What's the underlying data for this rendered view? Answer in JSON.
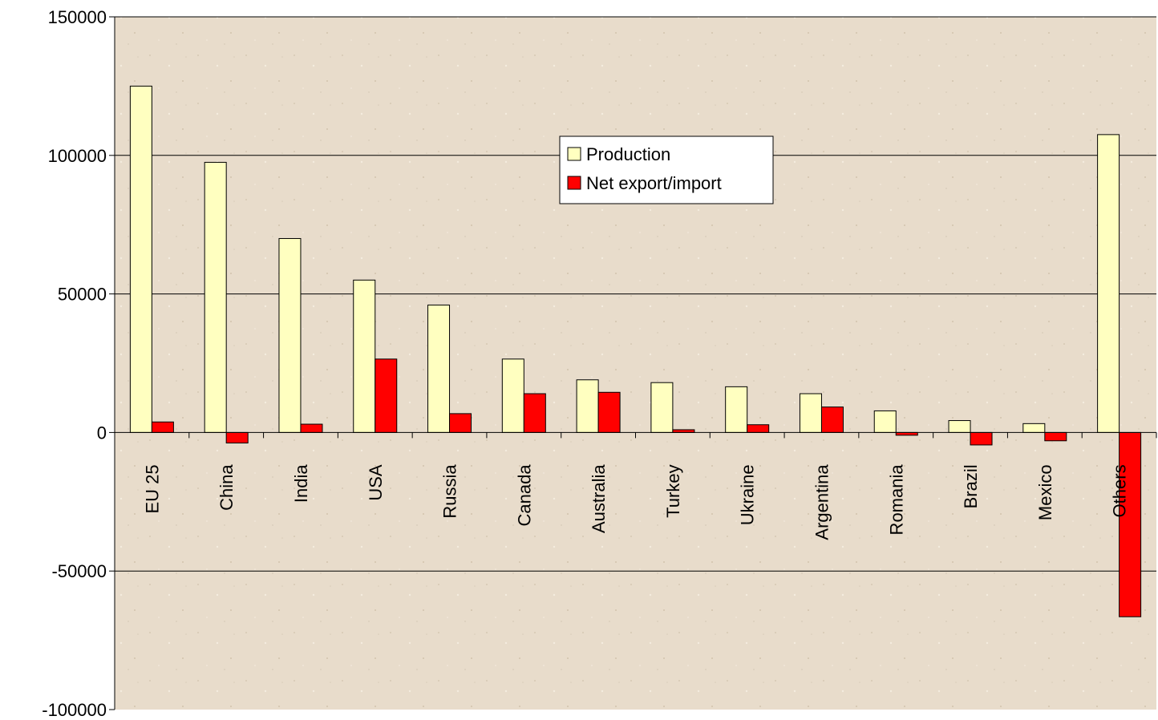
{
  "chart_data": {
    "type": "bar",
    "title": "",
    "xlabel": "",
    "ylabel": "",
    "ylim": [
      -100000,
      150000
    ],
    "yticks": [
      150000,
      100000,
      50000,
      0,
      -50000,
      -100000
    ],
    "grid": true,
    "legend_position": "top-center",
    "categories": [
      "EU 25",
      "China",
      "India",
      "USA",
      "Russia",
      "Canada",
      "Australia",
      "Turkey",
      "Ukraine",
      "Argentina",
      "Romania",
      "Brazil",
      "Mexico",
      "Others"
    ],
    "series": [
      {
        "name": "Production",
        "color": "#ffffc0",
        "values": [
          125000,
          97500,
          70000,
          55000,
          46000,
          26500,
          19000,
          18000,
          16500,
          14000,
          7800,
          4300,
          3200,
          107500
        ]
      },
      {
        "name": "Net export/import",
        "color": "#ff0000",
        "values": [
          3800,
          -3800,
          3000,
          26500,
          6800,
          14000,
          14500,
          1000,
          2800,
          9200,
          -1000,
          -4500,
          -3000,
          -66500
        ]
      }
    ],
    "colors": {
      "plot_background": "#e8dccb",
      "gridline": "#000000"
    }
  }
}
